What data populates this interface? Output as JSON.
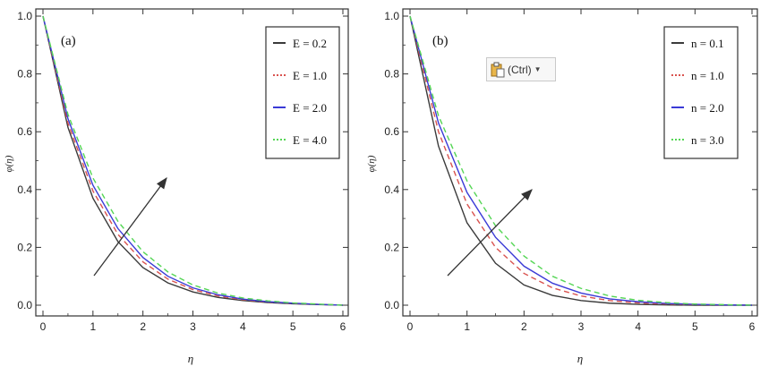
{
  "chart_data": [
    {
      "type": "line",
      "panel_label": "(a)",
      "xlabel": "η",
      "ylabel": "φ(η)",
      "xlim": [
        0,
        6
      ],
      "ylim": [
        0,
        1
      ],
      "xticks": [
        "0",
        "1",
        "2",
        "3",
        "4",
        "5",
        "6"
      ],
      "yticks": [
        "0.0",
        "0.2",
        "0.4",
        "0.6",
        "0.8",
        "1.0"
      ],
      "legend_position": "top-right",
      "annotation": "arrow indicates increasing E",
      "series": [
        {
          "name": "E = 0.2",
          "color": "#3a3a3a",
          "dash": "solid",
          "x": [
            0,
            0.5,
            1,
            1.5,
            2,
            2.5,
            3,
            3.5,
            4,
            4.5,
            5,
            5.5,
            6
          ],
          "y": [
            1.0,
            0.615,
            0.37,
            0.22,
            0.13,
            0.077,
            0.046,
            0.027,
            0.016,
            0.009,
            0.005,
            0.002,
            0.0
          ]
        },
        {
          "name": "E = 1.0",
          "color": "#d9534f",
          "dash": "dashed",
          "x": [
            0,
            0.5,
            1,
            1.5,
            2,
            2.5,
            3,
            3.5,
            4,
            4.5,
            5,
            5.5,
            6
          ],
          "y": [
            1.0,
            0.63,
            0.395,
            0.245,
            0.15,
            0.09,
            0.054,
            0.032,
            0.019,
            0.011,
            0.006,
            0.003,
            0.0
          ]
        },
        {
          "name": "E = 2.0",
          "color": "#3a3ad6",
          "dash": "solid",
          "x": [
            0,
            0.5,
            1,
            1.5,
            2,
            2.5,
            3,
            3.5,
            4,
            4.5,
            5,
            5.5,
            6
          ],
          "y": [
            1.0,
            0.645,
            0.415,
            0.265,
            0.165,
            0.1,
            0.06,
            0.036,
            0.021,
            0.012,
            0.007,
            0.003,
            0.0
          ]
        },
        {
          "name": "E = 4.0",
          "color": "#55d655",
          "dash": "dashed",
          "x": [
            0,
            0.5,
            1,
            1.5,
            2,
            2.5,
            3,
            3.5,
            4,
            4.5,
            5,
            5.5,
            6
          ],
          "y": [
            1.0,
            0.66,
            0.44,
            0.29,
            0.185,
            0.115,
            0.07,
            0.042,
            0.025,
            0.015,
            0.008,
            0.004,
            0.0
          ]
        }
      ]
    },
    {
      "type": "line",
      "panel_label": "(b)",
      "xlabel": "η",
      "ylabel": "φ(η)",
      "xlim": [
        0,
        6
      ],
      "ylim": [
        0,
        1
      ],
      "xticks": [
        "0",
        "1",
        "2",
        "3",
        "4",
        "5",
        "6"
      ],
      "yticks": [
        "0.0",
        "0.2",
        "0.4",
        "0.6",
        "0.8",
        "1.0"
      ],
      "legend_position": "top-right",
      "annotation": "arrow indicates increasing n",
      "series": [
        {
          "name": "n = 0.1",
          "color": "#3a3a3a",
          "dash": "solid",
          "x": [
            0,
            0.5,
            1,
            1.5,
            2,
            2.5,
            3,
            3.5,
            4,
            4.5,
            5,
            5.5,
            6
          ],
          "y": [
            1.0,
            0.55,
            0.285,
            0.145,
            0.07,
            0.034,
            0.016,
            0.007,
            0.003,
            0.001,
            0.0,
            0.0,
            0.0
          ]
        },
        {
          "name": "n = 1.0",
          "color": "#d9534f",
          "dash": "dashed",
          "x": [
            0,
            0.5,
            1,
            1.5,
            2,
            2.5,
            3,
            3.5,
            4,
            4.5,
            5,
            5.5,
            6
          ],
          "y": [
            1.0,
            0.6,
            0.35,
            0.2,
            0.11,
            0.06,
            0.032,
            0.016,
            0.008,
            0.004,
            0.002,
            0.001,
            0.0
          ]
        },
        {
          "name": "n = 2.0",
          "color": "#3a3ad6",
          "dash": "solid",
          "x": [
            0,
            0.5,
            1,
            1.5,
            2,
            2.5,
            3,
            3.5,
            4,
            4.5,
            5,
            5.5,
            6
          ],
          "y": [
            1.0,
            0.63,
            0.39,
            0.235,
            0.135,
            0.076,
            0.042,
            0.022,
            0.012,
            0.006,
            0.003,
            0.001,
            0.0
          ]
        },
        {
          "name": "n = 3.0",
          "color": "#55d655",
          "dash": "dashed",
          "x": [
            0,
            0.5,
            1,
            1.5,
            2,
            2.5,
            3,
            3.5,
            4,
            4.5,
            5,
            5.5,
            6
          ],
          "y": [
            1.0,
            0.655,
            0.43,
            0.275,
            0.17,
            0.1,
            0.058,
            0.032,
            0.017,
            0.009,
            0.004,
            0.002,
            0.0
          ]
        }
      ]
    }
  ],
  "paste_options": {
    "label": "(Ctrl)",
    "icon": "clipboard-icon",
    "caret_icon": "caret-down-icon"
  }
}
